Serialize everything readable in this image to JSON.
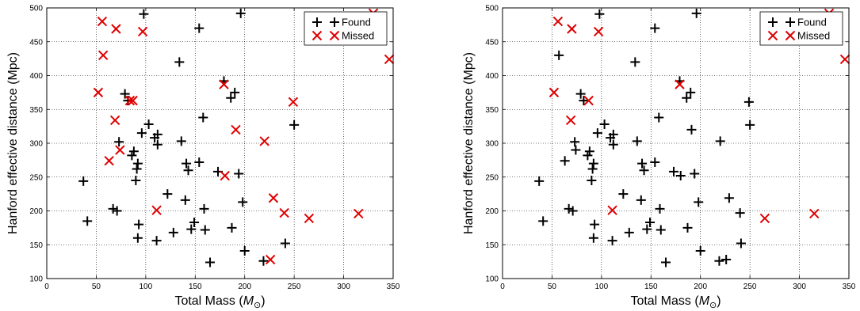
{
  "chart_data": [
    {
      "type": "scatter",
      "title": "",
      "xlabel": "Total Mass ($M_{\\odot}$)",
      "ylabel": "Hanford effective distance (Mpc)",
      "xlim": [
        0,
        350
      ],
      "ylim": [
        100,
        500
      ],
      "x_ticks": [
        0,
        50,
        100,
        150,
        200,
        250,
        300,
        350
      ],
      "y_ticks": [
        100,
        150,
        200,
        250,
        300,
        350,
        400,
        450,
        500
      ],
      "grid": "dotted",
      "legend_position": "top-right",
      "series": [
        {
          "name": "Found",
          "marker": "plus",
          "color": "#000000",
          "points": [
            [
              37,
              244
            ],
            [
              41,
              185
            ],
            [
              67,
              203
            ],
            [
              71,
              200
            ],
            [
              73,
              302
            ],
            [
              79,
              373
            ],
            [
              82,
              363
            ],
            [
              86,
              282
            ],
            [
              88,
              288
            ],
            [
              90,
              245
            ],
            [
              91,
              262
            ],
            [
              92,
              270
            ],
            [
              92,
              160
            ],
            [
              93,
              180
            ],
            [
              96,
              315
            ],
            [
              98,
              491
            ],
            [
              103,
              328
            ],
            [
              109,
              308
            ],
            [
              111,
              156
            ],
            [
              112,
              313
            ],
            [
              112,
              298
            ],
            [
              122,
              225
            ],
            [
              128,
              168
            ],
            [
              134,
              420
            ],
            [
              136,
              303
            ],
            [
              140,
              216
            ],
            [
              141,
              270
            ],
            [
              143,
              260
            ],
            [
              146,
              173
            ],
            [
              149,
              183
            ],
            [
              154,
              272
            ],
            [
              154,
              470
            ],
            [
              158,
              338
            ],
            [
              159,
              203
            ],
            [
              160,
              172
            ],
            [
              165,
              124
            ],
            [
              173,
              258
            ],
            [
              179,
              392
            ],
            [
              186,
              367
            ],
            [
              187,
              175
            ],
            [
              190,
              375
            ],
            [
              194,
              255
            ],
            [
              196,
              492
            ],
            [
              198,
              213
            ],
            [
              200,
              141
            ],
            [
              219,
              126
            ],
            [
              241,
              152
            ],
            [
              250,
              327
            ]
          ]
        },
        {
          "name": "Missed",
          "marker": "x",
          "color": "#e00000",
          "points": [
            [
              52,
              375
            ],
            [
              56,
              480
            ],
            [
              57,
              430
            ],
            [
              63,
              274
            ],
            [
              69,
              334
            ],
            [
              70,
              469
            ],
            [
              74,
              290
            ],
            [
              84,
              363
            ],
            [
              87,
              363
            ],
            [
              97,
              465
            ],
            [
              111,
              201
            ],
            [
              179,
              387
            ],
            [
              180,
              252
            ],
            [
              191,
              320
            ],
            [
              220,
              303
            ],
            [
              226,
              128
            ],
            [
              229,
              219
            ],
            [
              240,
              197
            ],
            [
              249,
              361
            ],
            [
              265,
              189
            ],
            [
              315,
              196
            ],
            [
              330,
              492
            ],
            [
              346,
              424
            ]
          ]
        }
      ]
    },
    {
      "type": "scatter",
      "title": "",
      "xlabel": "Total Mass ($M_{\\odot}$)",
      "ylabel": "Hanford effective distance (Mpc)",
      "xlim": [
        0,
        350
      ],
      "ylim": [
        100,
        500
      ],
      "x_ticks": [
        0,
        50,
        100,
        150,
        200,
        250,
        300,
        350
      ],
      "y_ticks": [
        100,
        150,
        200,
        250,
        300,
        350,
        400,
        450,
        500
      ],
      "grid": "dotted",
      "legend_position": "top-right",
      "series": [
        {
          "name": "Found",
          "marker": "plus",
          "color": "#000000",
          "points": [
            [
              37,
              244
            ],
            [
              41,
              185
            ],
            [
              57,
              430
            ],
            [
              63,
              274
            ],
            [
              67,
              203
            ],
            [
              71,
              200
            ],
            [
              73,
              302
            ],
            [
              74,
              290
            ],
            [
              79,
              373
            ],
            [
              82,
              363
            ],
            [
              86,
              282
            ],
            [
              88,
              288
            ],
            [
              90,
              245
            ],
            [
              91,
              262
            ],
            [
              92,
              270
            ],
            [
              92,
              160
            ],
            [
              93,
              180
            ],
            [
              96,
              315
            ],
            [
              98,
              491
            ],
            [
              103,
              328
            ],
            [
              109,
              308
            ],
            [
              111,
              156
            ],
            [
              112,
              313
            ],
            [
              112,
              298
            ],
            [
              122,
              225
            ],
            [
              128,
              168
            ],
            [
              134,
              420
            ],
            [
              136,
              303
            ],
            [
              140,
              216
            ],
            [
              141,
              270
            ],
            [
              143,
              260
            ],
            [
              146,
              173
            ],
            [
              149,
              183
            ],
            [
              154,
              272
            ],
            [
              154,
              470
            ],
            [
              158,
              338
            ],
            [
              159,
              203
            ],
            [
              160,
              172
            ],
            [
              165,
              124
            ],
            [
              173,
              258
            ],
            [
              179,
              392
            ],
            [
              180,
              252
            ],
            [
              186,
              367
            ],
            [
              187,
              175
            ],
            [
              190,
              375
            ],
            [
              191,
              320
            ],
            [
              194,
              255
            ],
            [
              196,
              492
            ],
            [
              198,
              213
            ],
            [
              200,
              141
            ],
            [
              219,
              126
            ],
            [
              220,
              303
            ],
            [
              226,
              128
            ],
            [
              229,
              219
            ],
            [
              240,
              197
            ],
            [
              241,
              152
            ],
            [
              249,
              361
            ],
            [
              250,
              327
            ]
          ]
        },
        {
          "name": "Missed",
          "marker": "x",
          "color": "#e00000",
          "points": [
            [
              52,
              375
            ],
            [
              56,
              480
            ],
            [
              69,
              334
            ],
            [
              70,
              469
            ],
            [
              87,
              363
            ],
            [
              97,
              465
            ],
            [
              111,
              201
            ],
            [
              179,
              387
            ],
            [
              265,
              189
            ],
            [
              315,
              196
            ],
            [
              330,
              492
            ],
            [
              346,
              424
            ]
          ]
        }
      ]
    }
  ]
}
